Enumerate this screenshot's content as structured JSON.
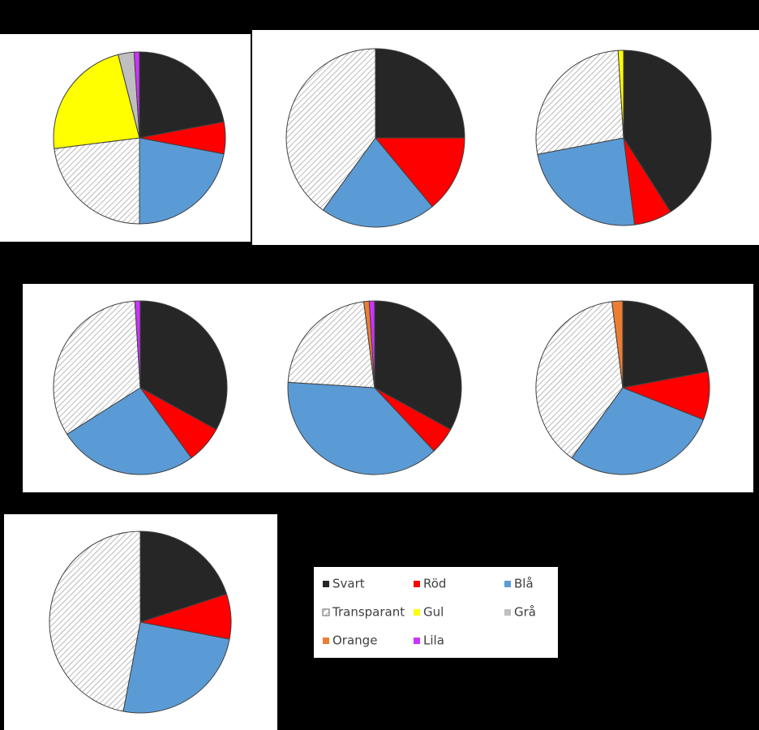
{
  "chart_data": [
    {
      "type": "pie",
      "categories": [
        "Svart",
        "Röd",
        "Blå",
        "Transparant",
        "Gul",
        "Grå",
        "Lila"
      ],
      "values": [
        22,
        6,
        22,
        23,
        23,
        3,
        1
      ]
    },
    {
      "type": "pie",
      "categories": [
        "Svart",
        "Röd",
        "Blå",
        "Transparant"
      ],
      "values": [
        25,
        14,
        21,
        40
      ]
    },
    {
      "type": "pie",
      "categories": [
        "Svart",
        "Röd",
        "Blå",
        "Transparant",
        "Gul"
      ],
      "values": [
        41,
        7,
        24,
        27,
        1
      ]
    },
    {
      "type": "pie",
      "categories": [
        "Svart",
        "Röd",
        "Blå",
        "Transparant",
        "Lila"
      ],
      "values": [
        33,
        7,
        26,
        33,
        1
      ]
    },
    {
      "type": "pie",
      "categories": [
        "Svart",
        "Röd",
        "Blå",
        "Transparant",
        "Orange",
        "Lila"
      ],
      "values": [
        33,
        5,
        38,
        22,
        1,
        1
      ]
    },
    {
      "type": "pie",
      "categories": [
        "Svart",
        "Röd",
        "Blå",
        "Transparant",
        "Orange"
      ],
      "values": [
        22,
        9,
        29,
        38,
        2
      ]
    },
    {
      "type": "pie",
      "categories": [
        "Svart",
        "Röd",
        "Blå",
        "Transparant"
      ],
      "values": [
        20,
        8,
        25,
        47
      ]
    }
  ],
  "legend": {
    "items": [
      {
        "name": "Svart",
        "color": "#262626"
      },
      {
        "name": "Röd",
        "color": "#ff0000"
      },
      {
        "name": "Blå",
        "color": "#5b9bd5"
      },
      {
        "name": "Transparant",
        "color": "#ffffff",
        "hatched": true
      },
      {
        "name": "Gul",
        "color": "#ffff00"
      },
      {
        "name": "Grå",
        "color": "#bfbfbf"
      },
      {
        "name": "Orange",
        "color": "#ed7d31"
      },
      {
        "name": "Lila",
        "color": "#cc33ff"
      }
    ]
  }
}
